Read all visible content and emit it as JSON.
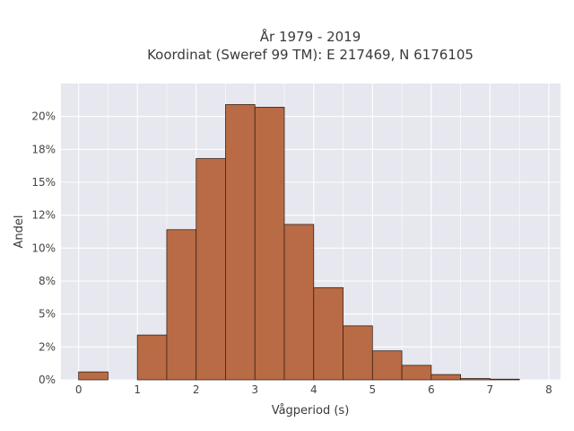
{
  "chart_data": {
    "type": "bar",
    "title": "År 1979 - 2019",
    "subtitle": "Koordinat (Sweref 99 TM): E 217469, N 6176105",
    "xlabel": "Vågperiod (s)",
    "ylabel": "Andel",
    "bin_width": 0.5,
    "bins": [
      {
        "start": 0.0,
        "value": 0.6
      },
      {
        "start": 0.5,
        "value": 0.0
      },
      {
        "start": 1.0,
        "value": 3.4
      },
      {
        "start": 1.5,
        "value": 11.4
      },
      {
        "start": 2.0,
        "value": 16.8
      },
      {
        "start": 2.5,
        "value": 20.9
      },
      {
        "start": 3.0,
        "value": 20.7
      },
      {
        "start": 3.5,
        "value": 11.8
      },
      {
        "start": 4.0,
        "value": 7.0
      },
      {
        "start": 4.5,
        "value": 4.1
      },
      {
        "start": 5.0,
        "value": 2.2
      },
      {
        "start": 5.5,
        "value": 1.1
      },
      {
        "start": 6.0,
        "value": 0.4
      },
      {
        "start": 6.5,
        "value": 0.1
      },
      {
        "start": 7.0,
        "value": 0.05
      }
    ],
    "xlim": [
      -0.3,
      8.2
    ],
    "ylim": [
      0,
      22.5
    ],
    "x_ticks": [
      0,
      1,
      2,
      3,
      4,
      5,
      6,
      7,
      8
    ],
    "x_tick_labels": [
      "0",
      "1",
      "2",
      "3",
      "4",
      "5",
      "6",
      "7",
      "8"
    ],
    "y_ticks": [
      0,
      2.5,
      5,
      7.5,
      10,
      12.5,
      15,
      17.5,
      20
    ],
    "y_tick_labels": [
      "0%",
      "2%",
      "5%",
      "8%",
      "10%",
      "12%",
      "15%",
      "18%",
      "20%"
    ],
    "grid": true,
    "colors": {
      "bar_fill": "#b86b45",
      "bar_edge": "#3b2418",
      "plot_bg": "#e6e7ef",
      "grid": "#ffffff"
    }
  }
}
